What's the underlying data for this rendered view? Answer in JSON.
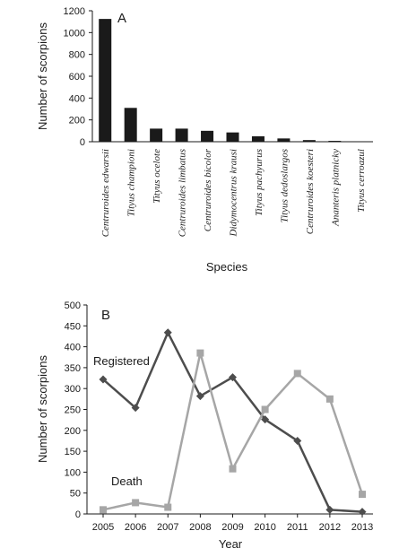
{
  "chart_data": [
    {
      "type": "bar",
      "panel_label": "A",
      "categories": [
        "Centruroides edwarsii",
        "Tityus championi",
        "Tityus ocelote",
        "Centruroides limbatus",
        "Centruroides bicolor",
        "Didymocentrus krausi",
        "Tityus pachyurus",
        "Tityus dedoslargos",
        "Centruroides koesteri",
        "Ananteris platnicky",
        "Tityus cerroazul"
      ],
      "values": [
        1125,
        310,
        120,
        120,
        100,
        85,
        50,
        30,
        15,
        8,
        3
      ],
      "xlabel": "Species",
      "ylabel": "Number of scorpions",
      "ylim": [
        0,
        1200
      ],
      "yticks": [
        0,
        200,
        400,
        600,
        800,
        1000,
        1200
      ],
      "bar_color": "#1a1a1a",
      "grid": false
    },
    {
      "type": "line",
      "panel_label": "B",
      "x": [
        2005,
        2006,
        2007,
        2008,
        2009,
        2010,
        2011,
        2012,
        2013
      ],
      "series": [
        {
          "name": "Registered",
          "values": [
            322,
            254,
            434,
            282,
            327,
            226,
            175,
            10,
            5
          ],
          "color": "#4d4d4d",
          "marker": "diamond"
        },
        {
          "name": "Death",
          "values": [
            10,
            27,
            16,
            385,
            108,
            250,
            336,
            275,
            47
          ],
          "color": "#a6a6a6",
          "marker": "square"
        }
      ],
      "xlabel": "Year",
      "ylabel": "Number of scorpions",
      "ylim": [
        0,
        500
      ],
      "yticks": [
        0,
        50,
        100,
        150,
        200,
        250,
        300,
        350,
        400,
        450,
        500
      ],
      "grid": false
    }
  ]
}
